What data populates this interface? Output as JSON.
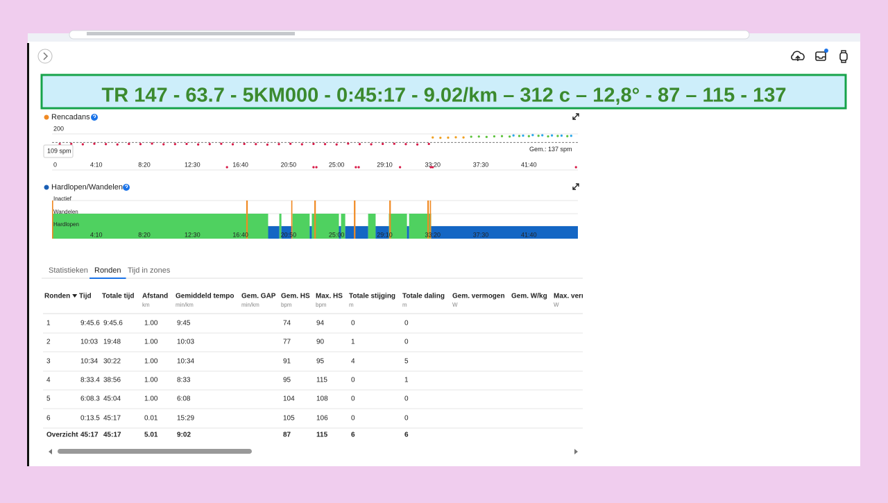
{
  "banner": "TR 147 - 63.7 - 5KM000 - 0:45:17 - 9.02/km – 312 c – 12,8° - 87 – 115 - 137",
  "cadence_chart": {
    "type": "scatter",
    "title": "Rencadans",
    "legend_color": "#f08a24",
    "ylim": [
      0,
      200
    ],
    "yticks": [
      0,
      200
    ],
    "xlim": [
      20,
      2755
    ],
    "xticks": [
      {
        "value": 250,
        "label": "4:10"
      },
      {
        "value": 500,
        "label": "8:20"
      },
      {
        "value": 750,
        "label": "12:30"
      },
      {
        "value": 1000,
        "label": "16:40"
      },
      {
        "value": 1250,
        "label": "20:50"
      },
      {
        "value": 1500,
        "label": "25:00"
      },
      {
        "value": 1750,
        "label": "29:10"
      },
      {
        "value": 2000,
        "label": "33:20"
      },
      {
        "value": 2250,
        "label": "37:30"
      },
      {
        "value": 2500,
        "label": "41:40"
      }
    ],
    "average": 137,
    "average_label": "Gem.: 137 spm",
    "tooltip": "109 spm",
    "series": [
      {
        "color": "#d81b48",
        "x": [
          60,
          120,
          180,
          240,
          300,
          360,
          420,
          480,
          540,
          600,
          660,
          720,
          780,
          840,
          900,
          960,
          1020,
          1080,
          1140,
          1200,
          1260,
          1320,
          1380,
          1440,
          1500,
          1560,
          1620,
          1680,
          1740,
          1800,
          1860,
          1920,
          1980
        ],
        "values": [
          128,
          129,
          127,
          130,
          128,
          126,
          129,
          128,
          131,
          127,
          128,
          129,
          126,
          128,
          130,
          127,
          129,
          128,
          125,
          128,
          130,
          127,
          129,
          128,
          126,
          131,
          128,
          127,
          129,
          130,
          128,
          126,
          129
        ]
      },
      {
        "color": "#d81b48",
        "x": [
          930,
          1380,
          1395,
          1600,
          1615,
          1830,
          1990,
          2000,
          2745
        ],
        "values": [
          0,
          0,
          0,
          0,
          0,
          0,
          0,
          0,
          0
        ]
      },
      {
        "color": "#f0a020",
        "x": [
          2000,
          2040,
          2080,
          2120,
          2160
        ],
        "values": [
          165,
          163,
          164,
          166,
          165
        ]
      },
      {
        "color": "#5cc23c",
        "x": [
          2200,
          2240,
          2280,
          2320,
          2360,
          2400,
          2450,
          2500,
          2550,
          2600,
          2650,
          2700
        ],
        "values": [
          169,
          170,
          168,
          171,
          172,
          170,
          173,
          172,
          174,
          171,
          173,
          172
        ]
      },
      {
        "color": "#2aa6e8",
        "x": [
          2420,
          2470,
          2520,
          2570,
          2620,
          2670,
          2720
        ],
        "values": [
          176,
          175,
          178,
          177,
          176,
          175,
          174
        ]
      }
    ]
  },
  "activity_chart": {
    "type": "timeline",
    "title": "Hardlopen/Wandelen",
    "legend_color": "#1a5fb4",
    "xlim": [
      20,
      2755
    ],
    "xticks": [
      {
        "value": 250,
        "label": "4:10"
      },
      {
        "value": 500,
        "label": "8:20"
      },
      {
        "value": 750,
        "label": "12:30"
      },
      {
        "value": 1000,
        "label": "16:40"
      },
      {
        "value": 1250,
        "label": "20:50"
      },
      {
        "value": 1500,
        "label": "25:00"
      },
      {
        "value": 1750,
        "label": "29:10"
      },
      {
        "value": 2000,
        "label": "33:20"
      },
      {
        "value": 2250,
        "label": "37:30"
      },
      {
        "value": 2500,
        "label": "41:40"
      }
    ],
    "categories": [
      "Inactief",
      "Wandelen",
      "Hardlopen"
    ],
    "category_colors": [
      "#f08a24",
      "#4fd160",
      "#1466c4"
    ],
    "segments": [
      {
        "activity": "Wandelen",
        "start": 20,
        "end": 1144
      },
      {
        "activity": "Hardlopen",
        "start": 1144,
        "end": 1202
      },
      {
        "activity": "Wandelen",
        "start": 1202,
        "end": 1213
      },
      {
        "activity": "Hardlopen",
        "start": 1213,
        "end": 1271
      },
      {
        "activity": "Wandelen",
        "start": 1271,
        "end": 1360
      },
      {
        "activity": "Hardlopen",
        "start": 1360,
        "end": 1371
      },
      {
        "activity": "Wandelen",
        "start": 1371,
        "end": 1512
      },
      {
        "activity": "Hardlopen",
        "start": 1512,
        "end": 1523
      },
      {
        "activity": "Wandelen",
        "start": 1523,
        "end": 1545
      },
      {
        "activity": "Hardlopen",
        "start": 1545,
        "end": 1664
      },
      {
        "activity": "Wandelen",
        "start": 1664,
        "end": 1703
      },
      {
        "activity": "Hardlopen",
        "start": 1703,
        "end": 1772
      },
      {
        "activity": "Wandelen",
        "start": 1772,
        "end": 1866
      },
      {
        "activity": "Hardlopen",
        "start": 1866,
        "end": 1877
      },
      {
        "activity": "Wandelen",
        "start": 1877,
        "end": 1992
      },
      {
        "activity": "Hardlopen",
        "start": 1992,
        "end": 2755
      },
      {
        "activity": "Inactief",
        "start": 20,
        "end": 26
      },
      {
        "activity": "Inactief",
        "start": 1030,
        "end": 1038
      },
      {
        "activity": "Inactief",
        "start": 1264,
        "end": 1270
      },
      {
        "activity": "Inactief",
        "start": 1384,
        "end": 1392
      },
      {
        "activity": "Inactief",
        "start": 1590,
        "end": 1598
      },
      {
        "activity": "Inactief",
        "start": 1774,
        "end": 1782
      },
      {
        "activity": "Inactief",
        "start": 1972,
        "end": 1980
      },
      {
        "activity": "Inactief",
        "start": 1985,
        "end": 1991
      }
    ]
  },
  "tabs": [
    "Statistieken",
    "Ronden",
    "Tijd in zones"
  ],
  "active_tab": 1,
  "table": {
    "columns": [
      {
        "label": "Ronden"
      },
      {
        "label": "Tijd"
      },
      {
        "label": "Totale tijd"
      },
      {
        "label": "Afstand",
        "unit": "km"
      },
      {
        "label": "Gemiddeld tempo",
        "unit": "min/km"
      },
      {
        "label": "Gem. GAP",
        "unit": "min/km"
      },
      {
        "label": "Gem. HS",
        "unit": "bpm"
      },
      {
        "label": "Max. HS",
        "unit": "bpm"
      },
      {
        "label": "Totale stijging",
        "unit": "m"
      },
      {
        "label": "Totale daling",
        "unit": "m"
      },
      {
        "label": "Gem. vermogen",
        "unit": "W"
      },
      {
        "label": "Gem. W/kg"
      },
      {
        "label": "Max. vermogen",
        "unit": "W"
      }
    ],
    "rows": [
      [
        "1",
        "9:45.6",
        "9:45.6",
        "1.00",
        "9:45",
        74,
        94,
        0,
        0
      ],
      [
        "2",
        "10:03",
        "19:48",
        "1.00",
        "10:03",
        77,
        90,
        1,
        0
      ],
      [
        "3",
        "10:34",
        "30:22",
        "1.00",
        "10:34",
        91,
        95,
        4,
        5
      ],
      [
        "4",
        "8:33.4",
        "38:56",
        "1.00",
        "8:33",
        95,
        115,
        0,
        1
      ],
      [
        "5",
        "6:08.3",
        "45:04",
        "1.00",
        "6:08",
        104,
        108,
        0,
        0
      ],
      [
        "6",
        "0:13.5",
        "45:17",
        "0.01",
        "15:29",
        105,
        106,
        0,
        0
      ]
    ],
    "summary": [
      "Overzicht",
      "45:17",
      "45:17",
      "5.01",
      "9:02",
      87,
      115,
      6,
      6
    ]
  }
}
